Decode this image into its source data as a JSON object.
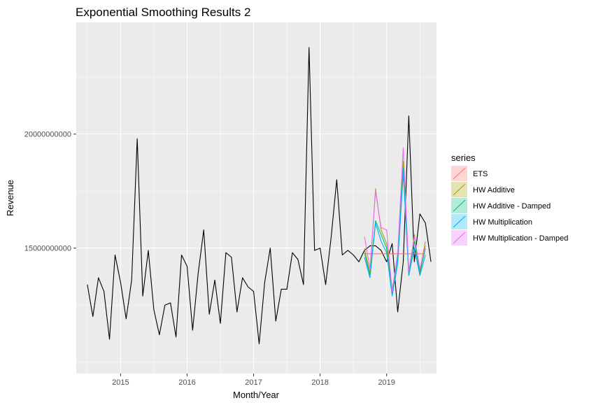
{
  "chart_data": {
    "type": "line",
    "title": "Exponential Smoothing Results 2",
    "xlabel": "Month/Year",
    "ylabel": "Revenue",
    "x_ticks": [
      "2015",
      "2016",
      "2017",
      "2018",
      "2019"
    ],
    "y_ticks": [
      "15000000000",
      "20000000000"
    ],
    "y_tick_values": [
      15000000000,
      20000000000
    ],
    "ylim": [
      9500000000,
      24900000000
    ],
    "xlim": [
      "2014-05",
      "2019-10"
    ],
    "grid": true,
    "legend": {
      "title": "series",
      "placement": "right"
    },
    "observed": {
      "start": "2014-07",
      "values": [
        13400000000,
        12000000000,
        13700000000,
        13100000000,
        11000000000,
        14700000000,
        13500000000,
        11900000000,
        13600000000,
        19800000000,
        12900000000,
        14900000000,
        12300000000,
        11200000000,
        12500000000,
        12600000000,
        11100000000,
        14700000000,
        14200000000,
        11400000000,
        13900000000,
        15800000000,
        12100000000,
        13600000000,
        11700000000,
        14800000000,
        14600000000,
        12200000000,
        13700000000,
        13300000000,
        13100000000,
        10800000000,
        13500000000,
        15000000000,
        11800000000,
        13200000000,
        13200000000,
        14800000000,
        14500000000,
        13400000000,
        23800000000,
        14900000000,
        15000000000,
        13400000000,
        15500000000,
        18000000000,
        14700000000,
        14900000000,
        14700000000,
        14400000000,
        14900000000,
        15100000000,
        15100000000,
        14900000000,
        14400000000,
        15200000000,
        12200000000,
        14400000000,
        20800000000,
        14400000000,
        16500000000,
        16100000000,
        14400000000
      ]
    },
    "series": [
      {
        "name": "ETS",
        "color": "#F8766D",
        "start": "2018-09",
        "values": [
          14750000000,
          14750000000,
          14750000000,
          14750000000,
          14750000000,
          14750000000,
          14750000000,
          14750000000,
          14750000000,
          14750000000,
          14750000000,
          14750000000
        ]
      },
      {
        "name": "HW Additive",
        "color": "#A3A500",
        "start": "2018-09",
        "values": [
          15000000000,
          13900000000,
          17600000000,
          15800000000,
          15200000000,
          13200000000,
          14600000000,
          18800000000,
          13800000000,
          15600000000,
          14000000000,
          15300000000
        ]
      },
      {
        "name": "HW Additive - Damped",
        "color": "#00BF7D",
        "start": "2018-09",
        "values": [
          14800000000,
          13800000000,
          16200000000,
          15600000000,
          15000000000,
          13000000000,
          14600000000,
          18500000000,
          13900000000,
          15300000000,
          13900000000,
          15000000000
        ]
      },
      {
        "name": "HW Multiplication",
        "color": "#00B0F6",
        "start": "2018-09",
        "values": [
          14600000000,
          13700000000,
          16100000000,
          15300000000,
          14800000000,
          12900000000,
          14300000000,
          18300000000,
          13800000000,
          15000000000,
          13800000000,
          14700000000
        ]
      },
      {
        "name": "HW Multiplication - Damped",
        "color": "#E76BF3",
        "start": "2018-09",
        "values": [
          15500000000,
          14100000000,
          17500000000,
          15900000000,
          15800000000,
          13100000000,
          14800000000,
          19400000000,
          14000000000,
          15500000000,
          14100000000,
          15100000000
        ]
      }
    ]
  }
}
